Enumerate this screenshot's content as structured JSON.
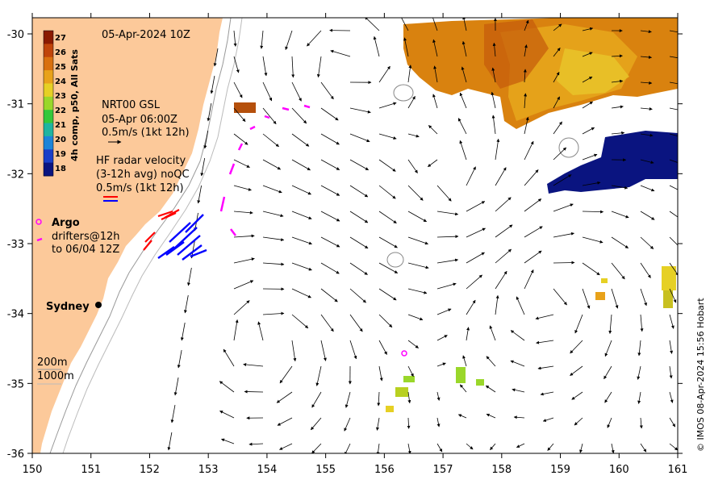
{
  "map": {
    "date_label": "05-Apr-2024 10Z",
    "x_ticks": [
      "150",
      "151",
      "152",
      "153",
      "154",
      "155",
      "156",
      "157",
      "158",
      "159",
      "160",
      "161"
    ],
    "y_ticks": [
      "-30",
      "-31",
      "-32",
      "-33",
      "-34",
      "-35",
      "-36"
    ],
    "colorbar": {
      "title": "4h comp, p50, All Sats",
      "ticks": [
        "27",
        "26",
        "25",
        "24",
        "23",
        "22",
        "21",
        "20",
        "19",
        "18"
      ],
      "colors": [
        "#8b1a00",
        "#c0440a",
        "#d9700f",
        "#e8a21a",
        "#e6d024",
        "#9ad72a",
        "#34c83a",
        "#1fb4a0",
        "#1d84d8",
        "#1a3ec8",
        "#0a1480"
      ]
    },
    "legend": {
      "model_title": "NRT00 GSL",
      "model_time": "05-Apr 06:00Z",
      "model_scale": "0.5m/s (1kt 12h)",
      "hf_title": "HF radar velocity",
      "hf_sub": "(3-12h avg) noQC",
      "hf_scale": "0.5m/s (1kt 12h)",
      "argo_label": "Argo",
      "drifter_label_1": "drifters@12h",
      "drifter_label_2": "to 06/04 12Z",
      "isobath_1": "200m",
      "isobath_2": "1000m"
    },
    "places": {
      "sydney": "Sydney"
    },
    "credit": "© IMOS 08-Apr-2024 15:56 Hobart",
    "colors": {
      "land": "#fcc99a",
      "hf_red": "#ff0000",
      "hf_blue": "#0000ff",
      "drifter": "#ff00ff",
      "argo": "#ff00ff",
      "warm_sst": "#d87a10",
      "cool_sst": "#0a1480"
    }
  }
}
